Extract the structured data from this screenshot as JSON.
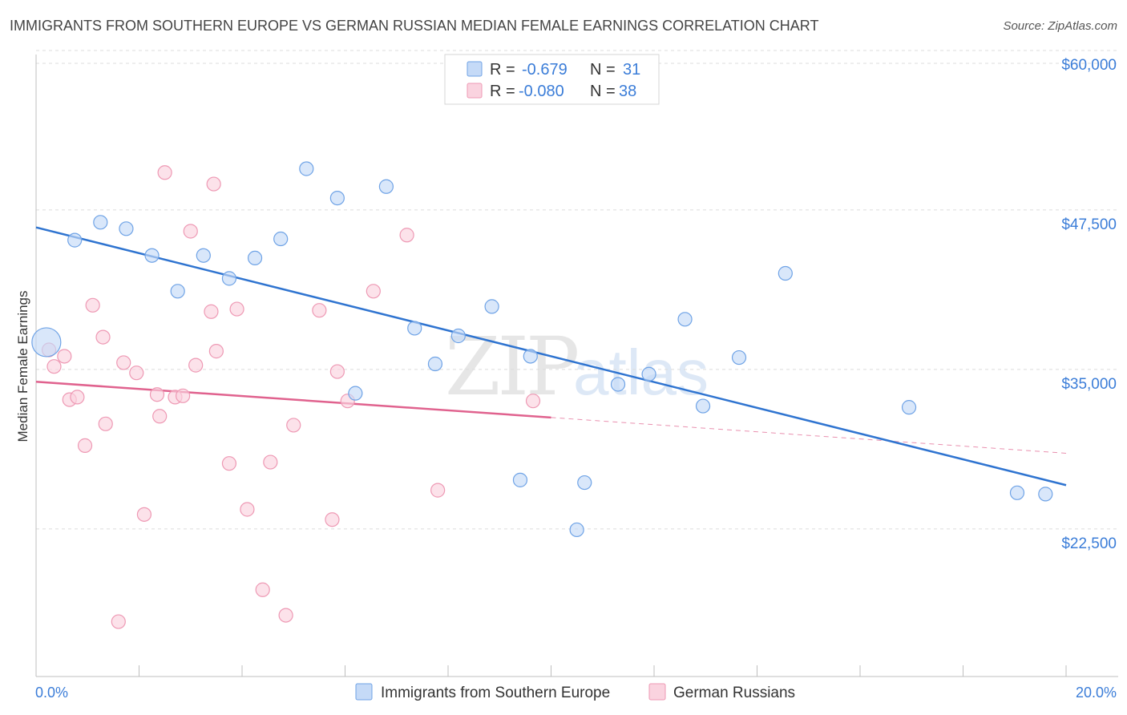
{
  "title": "IMMIGRANTS FROM SOUTHERN EUROPE VS GERMAN RUSSIAN MEDIAN FEMALE EARNINGS CORRELATION CHART",
  "source": "Source: ZipAtlas.com",
  "watermark": {
    "zip": "ZIP",
    "atlas": "atlas"
  },
  "chart_data": {
    "type": "scatter",
    "ylabel": "Median Female Earnings",
    "xlim": [
      0,
      20
    ],
    "ylim": [
      12000,
      60500
    ],
    "x_tick_labels": [
      "0.0%",
      "20.0%"
    ],
    "y_ticks": [
      {
        "value": 60000,
        "label": "$60,000"
      },
      {
        "value": 47500,
        "label": "$47,500"
      },
      {
        "value": 35000,
        "label": "$35,000"
      },
      {
        "value": 22500,
        "label": "$22,500"
      }
    ],
    "grid": true,
    "legend_placement": "top-center",
    "series": [
      {
        "name": "Immigrants from Southern Europe",
        "color": "#6fa3e6",
        "fill": "#c5daf7",
        "line_color": "#2f74d0",
        "stats": {
          "r_label": "R =",
          "r": "-0.679",
          "n_label": "N =",
          "n": "31"
        },
        "trend": {
          "x": [
            0,
            20
          ],
          "y": [
            47200,
            27000
          ]
        },
        "points": [
          {
            "x": 0.2,
            "y": 38200,
            "big": true
          },
          {
            "x": 0.75,
            "y": 46200
          },
          {
            "x": 1.25,
            "y": 47600
          },
          {
            "x": 1.75,
            "y": 47100
          },
          {
            "x": 2.25,
            "y": 45000
          },
          {
            "x": 2.75,
            "y": 42200
          },
          {
            "x": 3.25,
            "y": 45000
          },
          {
            "x": 3.75,
            "y": 43200
          },
          {
            "x": 4.25,
            "y": 44800
          },
          {
            "x": 4.75,
            "y": 46300
          },
          {
            "x": 5.25,
            "y": 51800
          },
          {
            "x": 5.85,
            "y": 49500
          },
          {
            "x": 6.2,
            "y": 34200
          },
          {
            "x": 6.8,
            "y": 50400
          },
          {
            "x": 7.35,
            "y": 39300
          },
          {
            "x": 7.75,
            "y": 36500
          },
          {
            "x": 8.2,
            "y": 38700
          },
          {
            "x": 8.85,
            "y": 41000
          },
          {
            "x": 9.4,
            "y": 27400
          },
          {
            "x": 9.6,
            "y": 37100
          },
          {
            "x": 10.5,
            "y": 23500
          },
          {
            "x": 10.65,
            "y": 27200
          },
          {
            "x": 11.3,
            "y": 34900
          },
          {
            "x": 11.9,
            "y": 35700
          },
          {
            "x": 12.6,
            "y": 40000
          },
          {
            "x": 12.95,
            "y": 33200
          },
          {
            "x": 13.65,
            "y": 37000
          },
          {
            "x": 14.55,
            "y": 43600
          },
          {
            "x": 16.95,
            "y": 33100
          },
          {
            "x": 19.05,
            "y": 26400
          },
          {
            "x": 19.6,
            "y": 26300
          }
        ]
      },
      {
        "name": "German Russians",
        "color": "#ee99b4",
        "fill": "#fad3df",
        "line_color": "#e0628e",
        "stats": {
          "r_label": "R =",
          "r": "-0.080",
          "n_label": "N =",
          "n": "38"
        },
        "trend": {
          "x": [
            0,
            10
          ],
          "y": [
            35100,
            32300
          ]
        },
        "trend_dashed": {
          "x": [
            10,
            20
          ],
          "y": [
            32300,
            29500
          ]
        },
        "points": [
          {
            "x": 0.25,
            "y": 37600
          },
          {
            "x": 0.35,
            "y": 36300
          },
          {
            "x": 0.55,
            "y": 37100
          },
          {
            "x": 0.65,
            "y": 33700
          },
          {
            "x": 0.8,
            "y": 33900
          },
          {
            "x": 0.95,
            "y": 30100
          },
          {
            "x": 1.1,
            "y": 41100
          },
          {
            "x": 1.3,
            "y": 38600
          },
          {
            "x": 1.35,
            "y": 31800
          },
          {
            "x": 1.6,
            "y": 16300
          },
          {
            "x": 1.7,
            "y": 36600
          },
          {
            "x": 1.95,
            "y": 35800
          },
          {
            "x": 2.1,
            "y": 24700
          },
          {
            "x": 2.4,
            "y": 32400
          },
          {
            "x": 2.5,
            "y": 51500
          },
          {
            "x": 2.35,
            "y": 34100
          },
          {
            "x": 2.7,
            "y": 33900
          },
          {
            "x": 2.85,
            "y": 34000
          },
          {
            "x": 3.0,
            "y": 46900
          },
          {
            "x": 3.1,
            "y": 36400
          },
          {
            "x": 3.4,
            "y": 40600
          },
          {
            "x": 3.5,
            "y": 37500
          },
          {
            "x": 3.45,
            "y": 50600
          },
          {
            "x": 3.9,
            "y": 40800
          },
          {
            "x": 3.75,
            "y": 28700
          },
          {
            "x": 4.1,
            "y": 25100
          },
          {
            "x": 4.4,
            "y": 18800
          },
          {
            "x": 4.55,
            "y": 28800
          },
          {
            "x": 4.85,
            "y": 16800
          },
          {
            "x": 5.0,
            "y": 31700
          },
          {
            "x": 5.5,
            "y": 40700
          },
          {
            "x": 5.85,
            "y": 35900
          },
          {
            "x": 5.75,
            "y": 24300
          },
          {
            "x": 6.05,
            "y": 33600
          },
          {
            "x": 6.55,
            "y": 42200
          },
          {
            "x": 7.2,
            "y": 46600
          },
          {
            "x": 7.8,
            "y": 26600
          },
          {
            "x": 9.65,
            "y": 33600
          }
        ]
      }
    ]
  }
}
